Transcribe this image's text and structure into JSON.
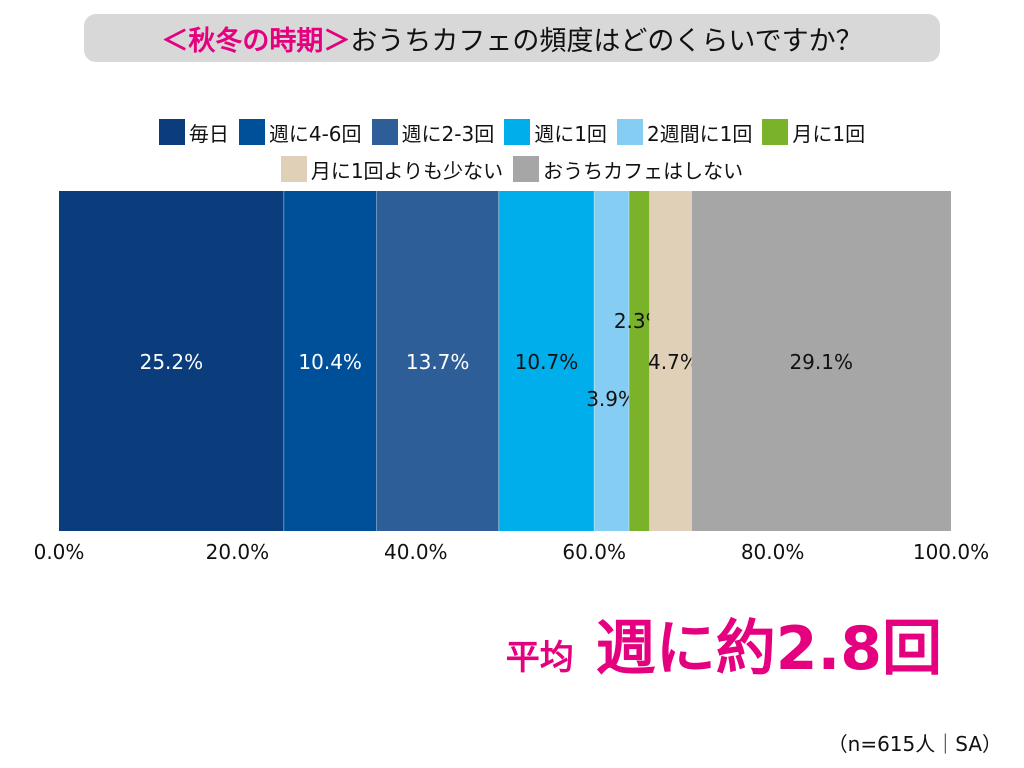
{
  "title": {
    "accent": "＜秋冬の時期＞",
    "main": "おうちカフェの頻度はどのくらいですか？"
  },
  "chart_data": {
    "type": "bar",
    "orientation": "horizontal",
    "stacked": true,
    "title": "",
    "xlabel": "",
    "ylabel": "",
    "xlim": [
      0,
      100
    ],
    "grid": false,
    "legend_position": "top",
    "x_ticks": [
      "0.0%",
      "20.0%",
      "40.0%",
      "60.0%",
      "80.0%",
      "100.0%"
    ],
    "x_tick_values": [
      0,
      20,
      40,
      60,
      80,
      100
    ],
    "series": [
      {
        "name": "毎日",
        "value": 25.2,
        "label": "25.2%",
        "color": "#0b3d7c",
        "label_color": "#ffffff"
      },
      {
        "name": "週に4-6回",
        "value": 10.4,
        "label": "10.4%",
        "color": "#005099",
        "label_color": "#ffffff"
      },
      {
        "name": "週に2-3回",
        "value": 13.7,
        "label": "13.7%",
        "color": "#2e5e97",
        "label_color": "#ffffff"
      },
      {
        "name": "週に1回",
        "value": 10.7,
        "label": "10.7%",
        "color": "#00aeeb",
        "label_color": "#111111"
      },
      {
        "name": "2週間に1回",
        "value": 3.9,
        "label": "3.9%",
        "color": "#85cdf3",
        "label_color": "#111111"
      },
      {
        "name": "月に1回",
        "value": 2.3,
        "label": "2.3%",
        "color": "#7ab32a",
        "label_color": "#111111"
      },
      {
        "name": "月に1回よりも少ない",
        "value": 4.7,
        "label": "4.7%",
        "color": "#e0d0b8",
        "label_color": "#111111"
      },
      {
        "name": "おうちカフェはしない",
        "value": 29.1,
        "label": "29.1%",
        "color": "#a6a6a6",
        "label_color": "#111111"
      }
    ]
  },
  "average": {
    "label": "平均",
    "value": "週に約2.8回"
  },
  "note": "（n=615人｜SA）",
  "colors": {
    "accent": "#e4007f",
    "title_bg": "#d8d8d8"
  }
}
